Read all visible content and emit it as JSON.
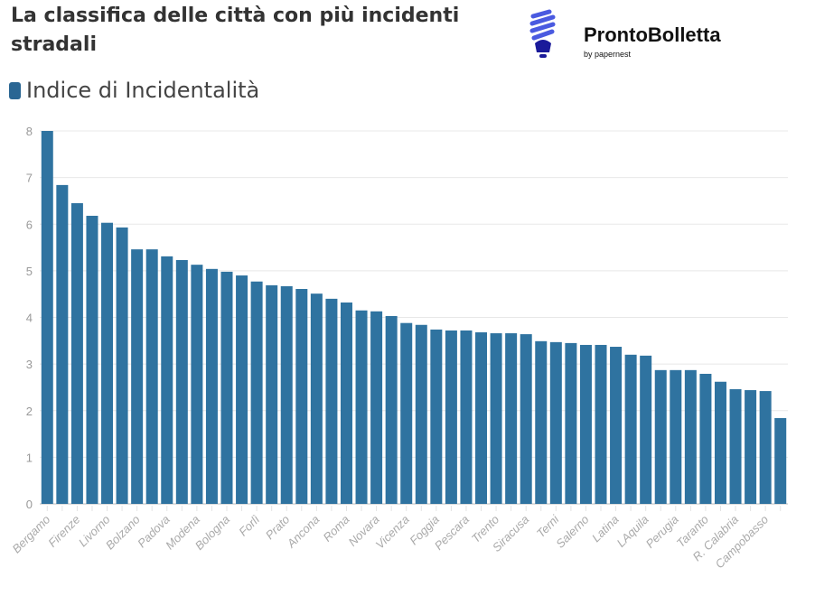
{
  "header": {
    "title": "La classifica delle città con più incidenti stradali"
  },
  "logo": {
    "name": "ProntoBolletta",
    "by": "by papernest",
    "brand_color": "#3f4fd1"
  },
  "chart_data": {
    "type": "bar",
    "title": "La classifica delle città con più incidenti stradali",
    "xlabel": "",
    "ylabel": "",
    "ylim": [
      0,
      8
    ],
    "yticks": [
      0,
      1,
      2,
      3,
      4,
      5,
      6,
      7,
      8
    ],
    "grid": true,
    "legend_placement": "top-left",
    "color": "#2f73a0",
    "categories": [
      "Bergamo",
      "",
      "Firenze",
      "",
      "Livorno",
      "",
      "Bolzano",
      "",
      "Padova",
      "",
      "Modena",
      "",
      "Bologna",
      "",
      "Forlì",
      "",
      "Prato",
      "",
      "Ancona",
      "",
      "Roma",
      "",
      "Novara",
      "",
      "Vicenza",
      "",
      "Foggia",
      "",
      "Pescara",
      "",
      "Trento",
      "",
      "Siracusa",
      "",
      "Terni",
      "",
      "Salerno",
      "",
      "Latina",
      "",
      "LAquila",
      "",
      "Perugia",
      "",
      "Taranto",
      "",
      "R. Calabria",
      "",
      "Campobasso",
      ""
    ],
    "series": [
      {
        "name": "Indice di Incidentalità",
        "values": [
          8.0,
          6.84,
          6.45,
          6.18,
          6.03,
          5.93,
          5.46,
          5.46,
          5.31,
          5.23,
          5.13,
          5.04,
          4.98,
          4.9,
          4.77,
          4.69,
          4.67,
          4.61,
          4.51,
          4.4,
          4.32,
          4.15,
          4.13,
          4.03,
          3.88,
          3.84,
          3.74,
          3.72,
          3.72,
          3.68,
          3.66,
          3.66,
          3.64,
          3.49,
          3.47,
          3.45,
          3.41,
          3.41,
          3.37,
          3.2,
          3.18,
          2.87,
          2.87,
          2.87,
          2.79,
          2.62,
          2.46,
          2.44,
          2.42,
          1.84
        ]
      }
    ]
  }
}
